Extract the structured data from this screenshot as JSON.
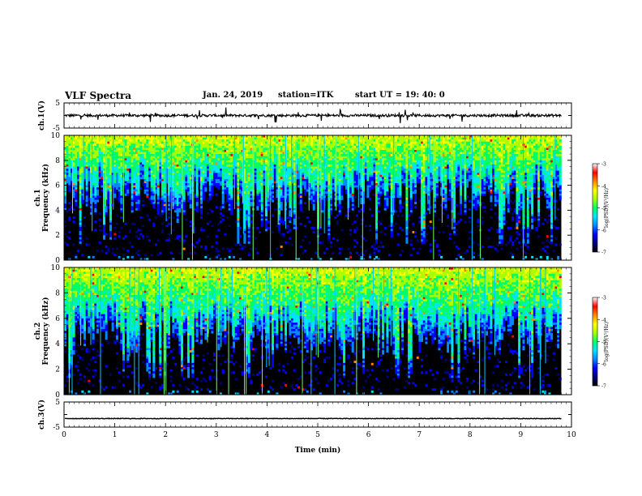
{
  "header": {
    "title": "VLF Spectra",
    "date": "Jan. 24, 2019",
    "station": "station=ITK",
    "start_time": "start UT =   19: 40: 0"
  },
  "chart_data": [
    {
      "type": "line",
      "panel": "ch1-waveform",
      "ylabel": "ch.1(V)",
      "ylim": [
        -5,
        5
      ],
      "yticks": [
        "5",
        "-5"
      ],
      "x_range_min": [
        0,
        10
      ],
      "data_end_min": 9.8,
      "baseline_v": 0.0,
      "note_values": "noisy waveform near 0 V with sparse spikes up to about ±3 V"
    },
    {
      "type": "heatmap",
      "panel": "ch1-spectrogram",
      "ylabel": "ch.1\nFrequency (kHz)",
      "ylim": [
        0,
        10
      ],
      "yticks": [
        "0",
        "2",
        "4",
        "6",
        "8",
        "10"
      ],
      "x_range_min": [
        0,
        10
      ],
      "data_end_min": 9.8,
      "colorbar": {
        "label": "log(PSD)(V²/Hz)",
        "range": [
          -7,
          -3
        ],
        "ticks": [
          "-3",
          "-4",
          "-5",
          "-6",
          "-7"
        ],
        "colormap": [
          "#000000",
          "#00007a",
          "#0000ff",
          "#0088ff",
          "#00e5ff",
          "#00ff66",
          "#aaff00",
          "#ffff00",
          "#ff8800",
          "#ff0000",
          "#ffffff"
        ]
      },
      "background_cutoff_khz": 6.3
    },
    {
      "type": "heatmap",
      "panel": "ch2-spectrogram",
      "ylabel": "ch.2\nFrequency (kHz)",
      "ylim": [
        0,
        10
      ],
      "yticks": [
        "0",
        "2",
        "4",
        "6",
        "8",
        "10"
      ],
      "x_range_min": [
        0,
        10
      ],
      "data_end_min": 9.8,
      "colorbar": {
        "label": "log(PSD)(V²/Hz)",
        "range": [
          -7,
          -3
        ],
        "ticks": [
          "-3",
          "-4",
          "-5",
          "-6",
          "-7"
        ],
        "colormap": [
          "#000000",
          "#00007a",
          "#0000ff",
          "#0088ff",
          "#00e5ff",
          "#00ff66",
          "#aaff00",
          "#ffff00",
          "#ff8800",
          "#ff0000",
          "#ffffff"
        ]
      },
      "background_cutoff_khz": 5.8
    },
    {
      "type": "line",
      "panel": "ch3-waveform",
      "ylabel": "ch.3(V)",
      "ylim": [
        -5,
        5
      ],
      "yticks": [
        "5",
        "-5"
      ],
      "x_range_min": [
        0,
        10
      ],
      "data_end_min": 9.8,
      "baseline_v": -1.6,
      "xlabel": "Time (min)",
      "xticks": [
        "0",
        "1",
        "2",
        "3",
        "4",
        "5",
        "6",
        "7",
        "8",
        "9",
        "10"
      ]
    }
  ]
}
